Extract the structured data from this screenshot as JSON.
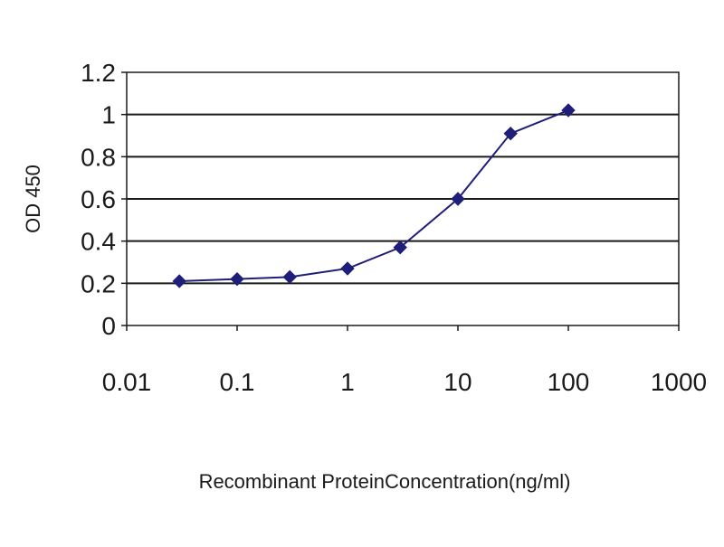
{
  "chart_data": {
    "type": "line",
    "title": "",
    "xlabel": "Recombinant ProteinConcentration(ng/ml)",
    "ylabel": "OD 450",
    "x_scale": "log",
    "xlim": [
      0.01,
      1000
    ],
    "ylim": [
      0,
      1.2
    ],
    "x_ticks": [
      "0.01",
      "0.1",
      "1",
      "10",
      "100",
      "1000"
    ],
    "y_ticks": [
      "0",
      "0.2",
      "0.4",
      "0.6",
      "0.8",
      "1",
      "1.2"
    ],
    "grid": "horizontal",
    "legend": "none",
    "series": [
      {
        "x": [
          0.03,
          0.1,
          0.3,
          1,
          3,
          10,
          30,
          100
        ],
        "y": [
          0.21,
          0.22,
          0.23,
          0.27,
          0.37,
          0.6,
          0.91,
          1.02
        ],
        "color": "#1f1f7a",
        "marker": "diamond"
      }
    ]
  },
  "colors": {
    "line": "#1f1f7a",
    "grid": "#1a1a1a",
    "axis": "#1a1a1a",
    "plot_bg": "#ffffff"
  }
}
